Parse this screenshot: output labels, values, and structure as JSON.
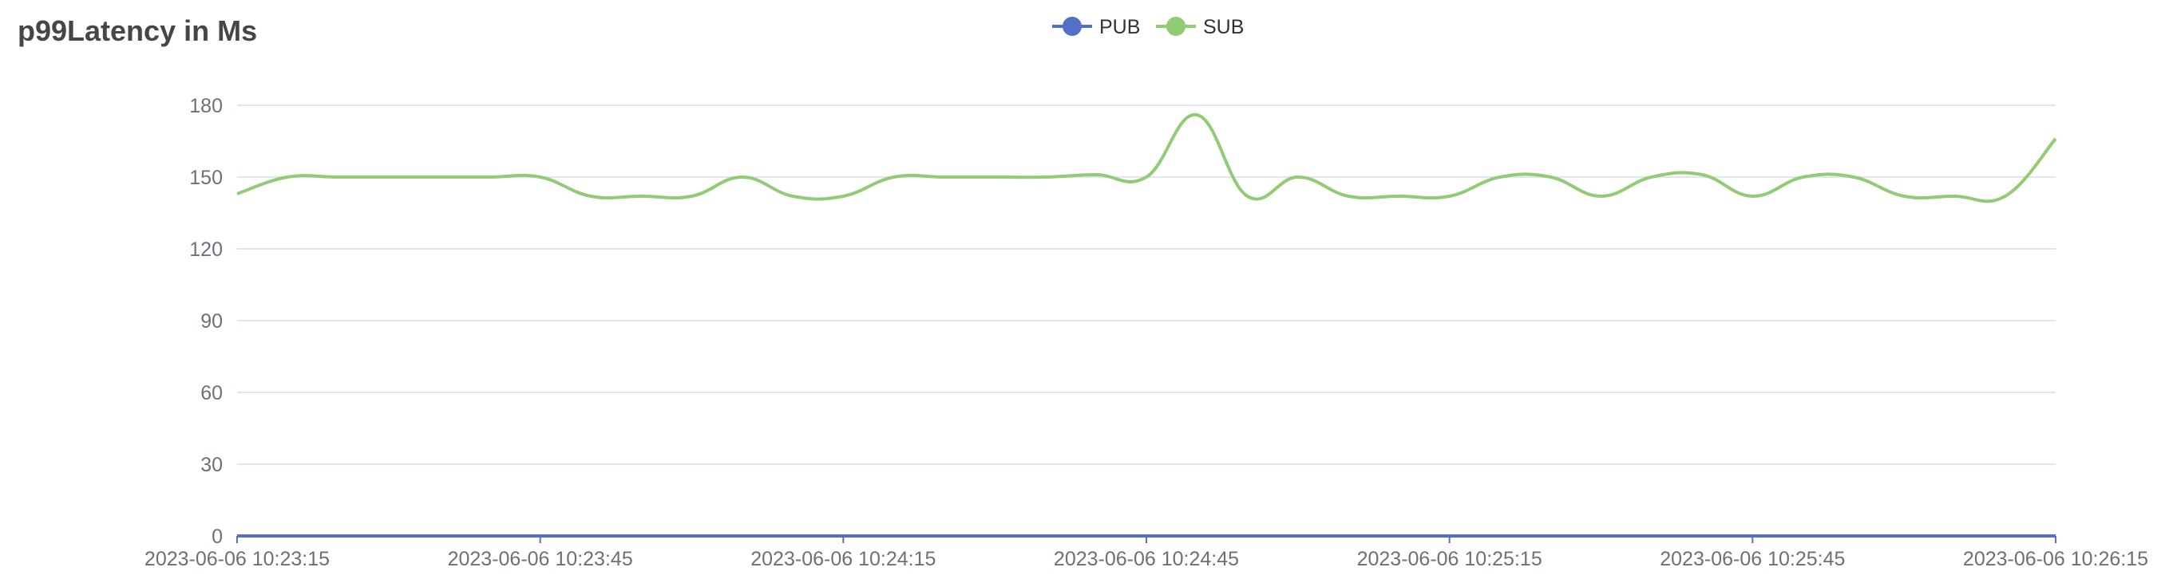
{
  "title": "p99Latency in Ms",
  "chart_data": {
    "type": "line",
    "title": "p99Latency in Ms",
    "xlabel": "",
    "ylabel": "",
    "ylim": [
      0,
      180
    ],
    "yticks": [
      0,
      30,
      60,
      90,
      120,
      150,
      180
    ],
    "xlim": [
      "2023-06-06 10:23:15",
      "2023-06-06 10:26:15"
    ],
    "xticks": [
      "2023-06-06 10:23:15",
      "2023-06-06 10:23:45",
      "2023-06-06 10:24:15",
      "2023-06-06 10:24:45",
      "2023-06-06 10:25:15",
      "2023-06-06 10:25:45",
      "2023-06-06 10:26:15"
    ],
    "grid": true,
    "legend_position": "top-center",
    "series": [
      {
        "name": "PUB",
        "color": "#5470c6",
        "points": [
          [
            "2023-06-06 10:23:15",
            0
          ],
          [
            "2023-06-06 10:23:30",
            0
          ],
          [
            "2023-06-06 10:23:45",
            0
          ],
          [
            "2023-06-06 10:24:00",
            0
          ],
          [
            "2023-06-06 10:24:15",
            0
          ],
          [
            "2023-06-06 10:24:30",
            0
          ],
          [
            "2023-06-06 10:24:45",
            0
          ],
          [
            "2023-06-06 10:25:00",
            0
          ],
          [
            "2023-06-06 10:25:15",
            0
          ],
          [
            "2023-06-06 10:25:30",
            0
          ],
          [
            "2023-06-06 10:25:45",
            0
          ],
          [
            "2023-06-06 10:26:00",
            0
          ],
          [
            "2023-06-06 10:26:15",
            0
          ]
        ]
      },
      {
        "name": "SUB",
        "color": "#91cc75",
        "points": [
          [
            "2023-06-06 10:23:15",
            143
          ],
          [
            "2023-06-06 10:23:20",
            150
          ],
          [
            "2023-06-06 10:23:25",
            150
          ],
          [
            "2023-06-06 10:23:30",
            150
          ],
          [
            "2023-06-06 10:23:35",
            150
          ],
          [
            "2023-06-06 10:23:40",
            150
          ],
          [
            "2023-06-06 10:23:45",
            150
          ],
          [
            "2023-06-06 10:23:50",
            142
          ],
          [
            "2023-06-06 10:23:55",
            142
          ],
          [
            "2023-06-06 10:24:00",
            142
          ],
          [
            "2023-06-06 10:24:05",
            150
          ],
          [
            "2023-06-06 10:24:10",
            142
          ],
          [
            "2023-06-06 10:24:15",
            142
          ],
          [
            "2023-06-06 10:24:20",
            150
          ],
          [
            "2023-06-06 10:24:25",
            150
          ],
          [
            "2023-06-06 10:24:30",
            150
          ],
          [
            "2023-06-06 10:24:35",
            150
          ],
          [
            "2023-06-06 10:24:40",
            151
          ],
          [
            "2023-06-06 10:24:45",
            150
          ],
          [
            "2023-06-06 10:24:50",
            176
          ],
          [
            "2023-06-06 10:24:55",
            142
          ],
          [
            "2023-06-06 10:25:00",
            150
          ],
          [
            "2023-06-06 10:25:05",
            142
          ],
          [
            "2023-06-06 10:25:10",
            142
          ],
          [
            "2023-06-06 10:25:15",
            142
          ],
          [
            "2023-06-06 10:25:20",
            150
          ],
          [
            "2023-06-06 10:25:25",
            150
          ],
          [
            "2023-06-06 10:25:30",
            142
          ],
          [
            "2023-06-06 10:25:35",
            150
          ],
          [
            "2023-06-06 10:25:40",
            151
          ],
          [
            "2023-06-06 10:25:45",
            142
          ],
          [
            "2023-06-06 10:25:50",
            150
          ],
          [
            "2023-06-06 10:25:55",
            150
          ],
          [
            "2023-06-06 10:26:00",
            142
          ],
          [
            "2023-06-06 10:26:05",
            142
          ],
          [
            "2023-06-06 10:26:10",
            142
          ],
          [
            "2023-06-06 10:26:15",
            166
          ]
        ]
      }
    ]
  }
}
